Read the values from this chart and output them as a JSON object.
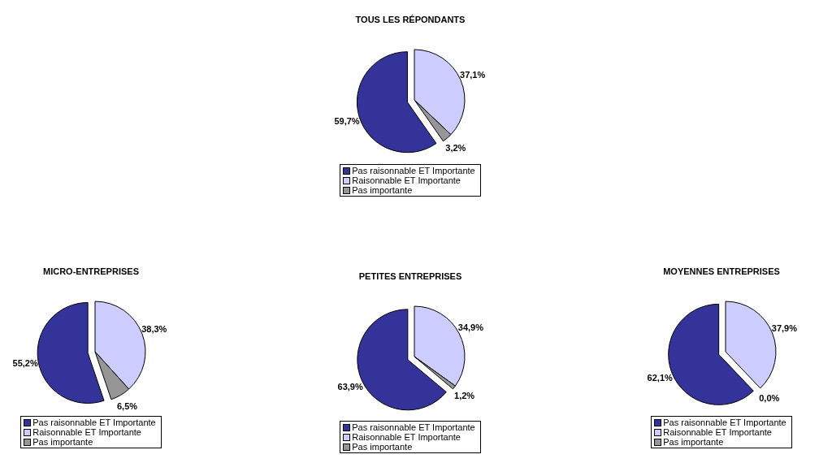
{
  "chart_data": [
    {
      "type": "pie",
      "title": "TOUS LES RÉPONDANTS",
      "categories": [
        "Pas raisonnable ET Importante",
        "Raisonnable ET Importante",
        "Pas importante"
      ],
      "values": [
        59.7,
        37.1,
        3.2
      ],
      "colors": [
        "#333399",
        "#ccccff",
        "#969696"
      ],
      "value_labels": [
        "59,7%",
        "37,1%",
        "3,2%"
      ],
      "legend": "bottom"
    },
    {
      "type": "pie",
      "title": "MICRO-ENTREPRISES",
      "categories": [
        "Pas raisonnable ET Importante",
        "Raisonnable ET Importante",
        "Pas importante"
      ],
      "values": [
        55.2,
        38.3,
        6.5
      ],
      "colors": [
        "#333399",
        "#ccccff",
        "#969696"
      ],
      "value_labels": [
        "55,2%",
        "38,3%",
        "6,5%"
      ],
      "legend": "bottom"
    },
    {
      "type": "pie",
      "title": "PETITES ENTREPRISES",
      "categories": [
        "Pas raisonnable ET Importante",
        "Raisonnable ET Importante",
        "Pas importante"
      ],
      "values": [
        63.9,
        34.9,
        1.2
      ],
      "colors": [
        "#333399",
        "#ccccff",
        "#969696"
      ],
      "value_labels": [
        "63,9%",
        "34,9%",
        "1,2%"
      ],
      "legend": "bottom"
    },
    {
      "type": "pie",
      "title": "MOYENNES ENTREPRISES",
      "categories": [
        "Pas raisonnable ET Importante",
        "Raisonnable ET Importante",
        "Pas importante"
      ],
      "values": [
        62.1,
        37.9,
        0.0
      ],
      "colors": [
        "#333399",
        "#ccccff",
        "#969696"
      ],
      "value_labels": [
        "62,1%",
        "37,9%",
        "0,0%"
      ],
      "legend": "bottom"
    }
  ]
}
